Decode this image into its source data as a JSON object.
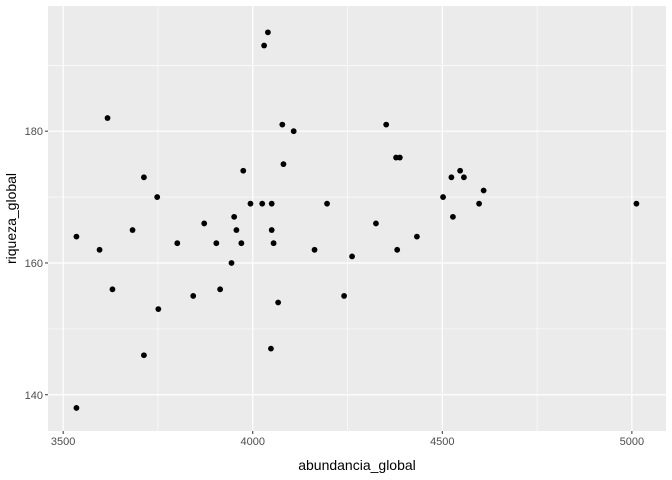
{
  "chart_data": {
    "type": "scatter",
    "xlabel": "abundancia_global",
    "ylabel": "riqueza_global",
    "xlim": [
      3460,
      5090
    ],
    "ylim": [
      134.5,
      199
    ],
    "x_ticks": [
      3500,
      4000,
      4500,
      5000
    ],
    "x_tick_labels": [
      "3500",
      "4000",
      "4500",
      "5000"
    ],
    "x_minor_ticks": [
      3750,
      4250,
      4750
    ],
    "y_ticks": [
      140,
      160,
      180
    ],
    "y_tick_labels": [
      "140",
      "160",
      "180"
    ],
    "y_minor_ticks": [
      150,
      170,
      190
    ],
    "grid": true,
    "colors": {
      "panel": "#ebebeb",
      "grid": "#ffffff",
      "point": "#000000"
    },
    "points": [
      {
        "x": 3535,
        "y": 164
      },
      {
        "x": 3535,
        "y": 138
      },
      {
        "x": 3596,
        "y": 162
      },
      {
        "x": 3617,
        "y": 182
      },
      {
        "x": 3630,
        "y": 156
      },
      {
        "x": 3683,
        "y": 165
      },
      {
        "x": 3713,
        "y": 173
      },
      {
        "x": 3713,
        "y": 146
      },
      {
        "x": 3748,
        "y": 170
      },
      {
        "x": 3751,
        "y": 153
      },
      {
        "x": 3801,
        "y": 163
      },
      {
        "x": 3843,
        "y": 155
      },
      {
        "x": 3872,
        "y": 166
      },
      {
        "x": 3904,
        "y": 163
      },
      {
        "x": 3914,
        "y": 156
      },
      {
        "x": 3944,
        "y": 160
      },
      {
        "x": 3951,
        "y": 167
      },
      {
        "x": 3957,
        "y": 165
      },
      {
        "x": 3970,
        "y": 163
      },
      {
        "x": 3975,
        "y": 174
      },
      {
        "x": 3994,
        "y": 169
      },
      {
        "x": 4025,
        "y": 169
      },
      {
        "x": 4030,
        "y": 193
      },
      {
        "x": 4040,
        "y": 195
      },
      {
        "x": 4050,
        "y": 169
      },
      {
        "x": 4050,
        "y": 165
      },
      {
        "x": 4055,
        "y": 163
      },
      {
        "x": 4048,
        "y": 147
      },
      {
        "x": 4067,
        "y": 154
      },
      {
        "x": 4078,
        "y": 181
      },
      {
        "x": 4081,
        "y": 175
      },
      {
        "x": 4108,
        "y": 180
      },
      {
        "x": 4163,
        "y": 162
      },
      {
        "x": 4196,
        "y": 169
      },
      {
        "x": 4241,
        "y": 155
      },
      {
        "x": 4262,
        "y": 161
      },
      {
        "x": 4325,
        "y": 166
      },
      {
        "x": 4352,
        "y": 181
      },
      {
        "x": 4378,
        "y": 176
      },
      {
        "x": 4388,
        "y": 176
      },
      {
        "x": 4381,
        "y": 162
      },
      {
        "x": 4433,
        "y": 164
      },
      {
        "x": 4502,
        "y": 170
      },
      {
        "x": 4524,
        "y": 173
      },
      {
        "x": 4528,
        "y": 167
      },
      {
        "x": 4547,
        "y": 174
      },
      {
        "x": 4557,
        "y": 173
      },
      {
        "x": 4597,
        "y": 169
      },
      {
        "x": 4609,
        "y": 171
      },
      {
        "x": 5012,
        "y": 169
      }
    ]
  }
}
